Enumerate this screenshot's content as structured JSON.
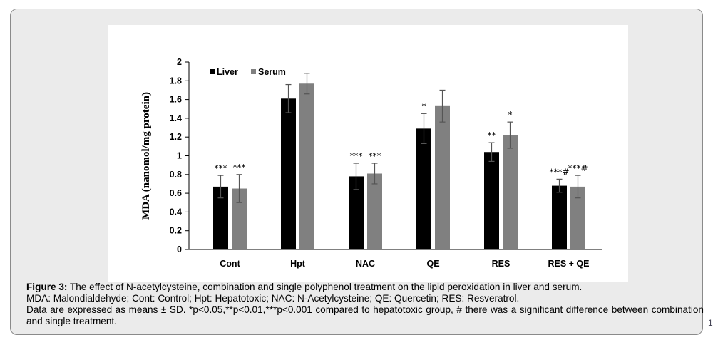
{
  "chart_data": {
    "type": "bar",
    "title": "",
    "xlabel": "",
    "ylabel": "MDA (nanomol/mg protein)",
    "ylim": [
      0,
      2
    ],
    "yticks": [
      0,
      0.2,
      0.4,
      0.6,
      0.8,
      1,
      1.2,
      1.4,
      1.6,
      1.8,
      2
    ],
    "ytick_labels": [
      "0",
      "0.2",
      "0.4",
      "0.6",
      "0.8",
      "1",
      "1.2",
      "1.4",
      "1.6",
      "1.8",
      "2"
    ],
    "grid": false,
    "legend_position": "top-left",
    "categories": [
      "Cont",
      "Hpt",
      "NAC",
      "QE",
      "RES",
      "RES + QE"
    ],
    "series": [
      {
        "name": "Liver",
        "color": "#000000",
        "values": [
          0.67,
          1.61,
          0.78,
          1.29,
          1.04,
          0.68
        ],
        "errors": [
          0.12,
          0.15,
          0.14,
          0.16,
          0.1,
          0.07
        ],
        "annotations": [
          "***",
          "",
          "***",
          "*",
          "**",
          "***#"
        ]
      },
      {
        "name": "Serum",
        "color": "#808080",
        "values": [
          0.65,
          1.77,
          0.81,
          1.53,
          1.22,
          0.67
        ],
        "errors": [
          0.15,
          0.11,
          0.11,
          0.17,
          0.14,
          0.12
        ],
        "annotations": [
          "***",
          "",
          "***",
          "",
          "*",
          "***#"
        ]
      }
    ]
  },
  "caption": {
    "label": "Figure 3:",
    "title": " The effect of N-acetylcysteine, combination and single polyphenol treatment on the lipid peroxidation in liver and serum.",
    "abbreviations": "MDA: Malondialdehyde; Cont: Control; Hpt: Hepatotoxic; NAC: N-Acetylcysteine; QE: Quercetin; RES: Resveratrol.",
    "stats": "Data are expressed as means ± SD. *p<0.05,**p<0.01,***p<0.001 compared to hepatotoxic group, # there was a significant difference between combination and single treatment."
  },
  "page_marker": "1"
}
